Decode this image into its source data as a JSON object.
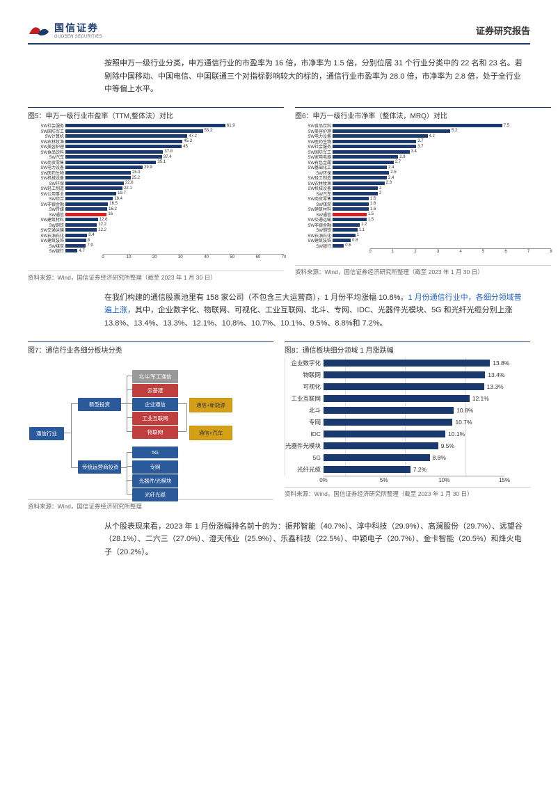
{
  "header": {
    "company_cn": "国信证券",
    "company_en": "GUOSEN SECURITIES",
    "report_type": "证券研究报告"
  },
  "para1": "按照申万一级行业分类，申万通信行业的市盈率为 16 倍，市净率为 1.5 倍，分别位居 31 个行业分类中的 22 名和 23 名。若剔除中国移动、中国电信、中国联通三个对指标影响较大的标的，通信行业市盈率为 28.0 倍，市净率为 2.8 倍，处于全行业中等偏上水平。",
  "chart5": {
    "title": "图5：申万一级行业市盈率（TTM,整体法）对比",
    "src": "资料来源：Wind，国信证券经济研究所整理（截至 2023 年 1 月 30 日）",
    "xmax": 70,
    "xticks": [
      0,
      10,
      20,
      30,
      40,
      50,
      60,
      70
    ],
    "bar_color": "#1a3a6e",
    "highlight_color": "#d62020",
    "rows": [
      {
        "label": "SW社会服务",
        "val": 61.9
      },
      {
        "label": "SW国防军工",
        "val": 53.2
      },
      {
        "label": "SW计算机",
        "val": 47.2
      },
      {
        "label": "SW农林牧渔",
        "val": 45.3
      },
      {
        "label": "SW美容护理",
        "val": 45.0
      },
      {
        "label": "SW食品饮料",
        "val": 37.8
      },
      {
        "label": "SW汽车",
        "val": 37.4
      },
      {
        "label": "SW商贸零售",
        "val": 35.1
      },
      {
        "label": "SW电力设备",
        "val": 29.9
      },
      {
        "label": "SW医药生物",
        "val": 25.3
      },
      {
        "label": "SW机械设备",
        "val": 25.2
      },
      {
        "label": "SW环保",
        "val": 22.6
      },
      {
        "label": "SW轻工制造",
        "val": 22.1
      },
      {
        "label": "SW公用事业",
        "val": 19.7
      },
      {
        "label": "SW综合",
        "val": 18.4
      },
      {
        "label": "SW非银金融",
        "val": 16.5
      },
      {
        "label": "SW传媒",
        "val": 16.2
      },
      {
        "label": "SW通信",
        "val": 16.0,
        "hl": true
      },
      {
        "label": "SW建筑材料",
        "val": 12.6
      },
      {
        "label": "SW钢铁",
        "val": 12.2
      },
      {
        "label": "SW交通运输",
        "val": 12.2
      },
      {
        "label": "SW石油石化",
        "val": 8.4
      },
      {
        "label": "SW建筑装饰",
        "val": 8.0
      },
      {
        "label": "SW煤炭",
        "val": 7.9
      },
      {
        "label": "SW银行",
        "val": 4.7
      }
    ]
  },
  "chart6": {
    "title": "图6：申万一级行业市净率（整体法，MRQ）对比",
    "src": "资料来源：Wind，国信证券经济研究所整理（截至 2023 年 1 月 30 日）",
    "xmax": 8,
    "xticks": [
      0,
      1,
      2,
      3,
      4,
      5,
      6,
      7,
      8
    ],
    "bar_color": "#1a3a6e",
    "highlight_color": "#d62020",
    "rows": [
      {
        "label": "SW食品饮料",
        "val": 7.5
      },
      {
        "label": "SW美容护理",
        "val": 5.2
      },
      {
        "label": "SW电力设备",
        "val": 4.2
      },
      {
        "label": "SW医药生物",
        "val": 3.7
      },
      {
        "label": "SW社会服务",
        "val": 3.7
      },
      {
        "label": "SW国防军工",
        "val": 3.4
      },
      {
        "label": "SW家用电器",
        "val": 2.9
      },
      {
        "label": "SW有色金属",
        "val": 2.7
      },
      {
        "label": "SW基础化工",
        "val": 2.4
      },
      {
        "label": "SW环保",
        "val": 2.5
      },
      {
        "label": "SW轻工制造",
        "val": 2.4
      },
      {
        "label": "SW农林牧渔",
        "val": 2.3
      },
      {
        "label": "SW机械设备",
        "val": 2.0
      },
      {
        "label": "SW汽车",
        "val": 2.0
      },
      {
        "label": "SW商贸零售",
        "val": 1.6
      },
      {
        "label": "SW煤炭",
        "val": 1.6
      },
      {
        "label": "SW建筑材料",
        "val": 1.6
      },
      {
        "label": "SW通信",
        "val": 1.5,
        "hl": true
      },
      {
        "label": "SW交通运输",
        "val": 1.5
      },
      {
        "label": "SW非银金融",
        "val": 1.2
      },
      {
        "label": "SW钢铁",
        "val": 1.1
      },
      {
        "label": "SW石油石化",
        "val": 1.0
      },
      {
        "label": "SW建筑装饰",
        "val": 0.8
      },
      {
        "label": "SW银行",
        "val": 0.5
      }
    ]
  },
  "para2_a": "在我们构建的通信股票池里有 158 家公司（不包含三大运营商），1 月份平均涨幅 10.8%。",
  "para2_b": "1 月份通信行业中，各细分领域普遍上涨，",
  "para2_c": "其中，企业数字化、物联网、可视化、工业互联网、北斗、专网、IDC、光器件光模块、5G 和光纤光缆分别上涨 13.8%、13.4%、13.3%、12.1%、10.8%、10.7%、10.1%、9.5%、8.8%和 7.2%。",
  "chart7": {
    "title": "图7：通信行业各细分板块分类",
    "src": "资料来源：Wind，国信证券经济研究所整理",
    "root": {
      "label": "通信行业",
      "color": "#2a5a9a"
    },
    "l2": [
      {
        "label": "新型投资",
        "color": "#2a5a9a",
        "y": 58
      },
      {
        "label": "传统运营商投资",
        "color": "#2a5a9a",
        "y": 148
      }
    ],
    "l3a": [
      {
        "label": "北斗/军工通信",
        "color": "#999",
        "y": 18
      },
      {
        "label": "云基建",
        "color": "#c04040",
        "y": 38
      },
      {
        "label": "企业通信",
        "color": "#2a5a9a",
        "y": 58
      },
      {
        "label": "工业互联网",
        "color": "#c04040",
        "y": 78
      },
      {
        "label": "物联网",
        "color": "#c04040",
        "y": 98
      }
    ],
    "l3b": [
      {
        "label": "5G",
        "color": "#2a5a9a",
        "y": 128
      },
      {
        "label": "专网",
        "color": "#2a5a9a",
        "y": 148
      },
      {
        "label": "光器件/光模块",
        "color": "#2a5a9a",
        "y": 168
      },
      {
        "label": "光纤光缆",
        "color": "#2a5a9a",
        "y": 188
      }
    ],
    "l4": [
      {
        "label": "通信+新能源",
        "color": "#d4a017",
        "y": 58
      },
      {
        "label": "通信+汽车",
        "color": "#d4a017",
        "y": 98
      }
    ]
  },
  "chart8": {
    "title": "图8：通信板块细分领域 1 月涨跌幅",
    "src": "资料来源：Wind，国信证券经济研究所整理（截至 2023 年 1 月 30 日）",
    "xmax": 15,
    "xticks": [
      "0%",
      "5%",
      "10%",
      "15%"
    ],
    "bar_color": "#1a3a6e",
    "rows": [
      {
        "label": "企业数字化",
        "val": 13.8,
        "disp": "13.8%"
      },
      {
        "label": "物联网",
        "val": 13.4,
        "disp": "13.4%"
      },
      {
        "label": "可视化",
        "val": 13.3,
        "disp": "13.3%"
      },
      {
        "label": "工业互联网",
        "val": 12.1,
        "disp": "12.1%"
      },
      {
        "label": "北斗",
        "val": 10.8,
        "disp": "10.8%"
      },
      {
        "label": "专网",
        "val": 10.7,
        "disp": "10.7%"
      },
      {
        "label": "IDC",
        "val": 10.1,
        "disp": "10.1%"
      },
      {
        "label": "光器件光模块",
        "val": 9.5,
        "disp": "9.5%"
      },
      {
        "label": "5G",
        "val": 8.8,
        "disp": "8.8%"
      },
      {
        "label": "光纤光缆",
        "val": 7.2,
        "disp": "7.2%"
      }
    ]
  },
  "para3": "从个股表现来看，2023 年 1 月份涨幅排名前十的为：振邦智能（40.7%）、淳中科技（29.9%）、高澜股份（29.7%）、远望谷（28.1%）、二六三（27.0%）、澄天伟业（25.9%）、乐鑫科技（22.5%）、中颖电子（20.7%）、金卡智能（20.5%）和烽火电子（20.2%）。"
}
